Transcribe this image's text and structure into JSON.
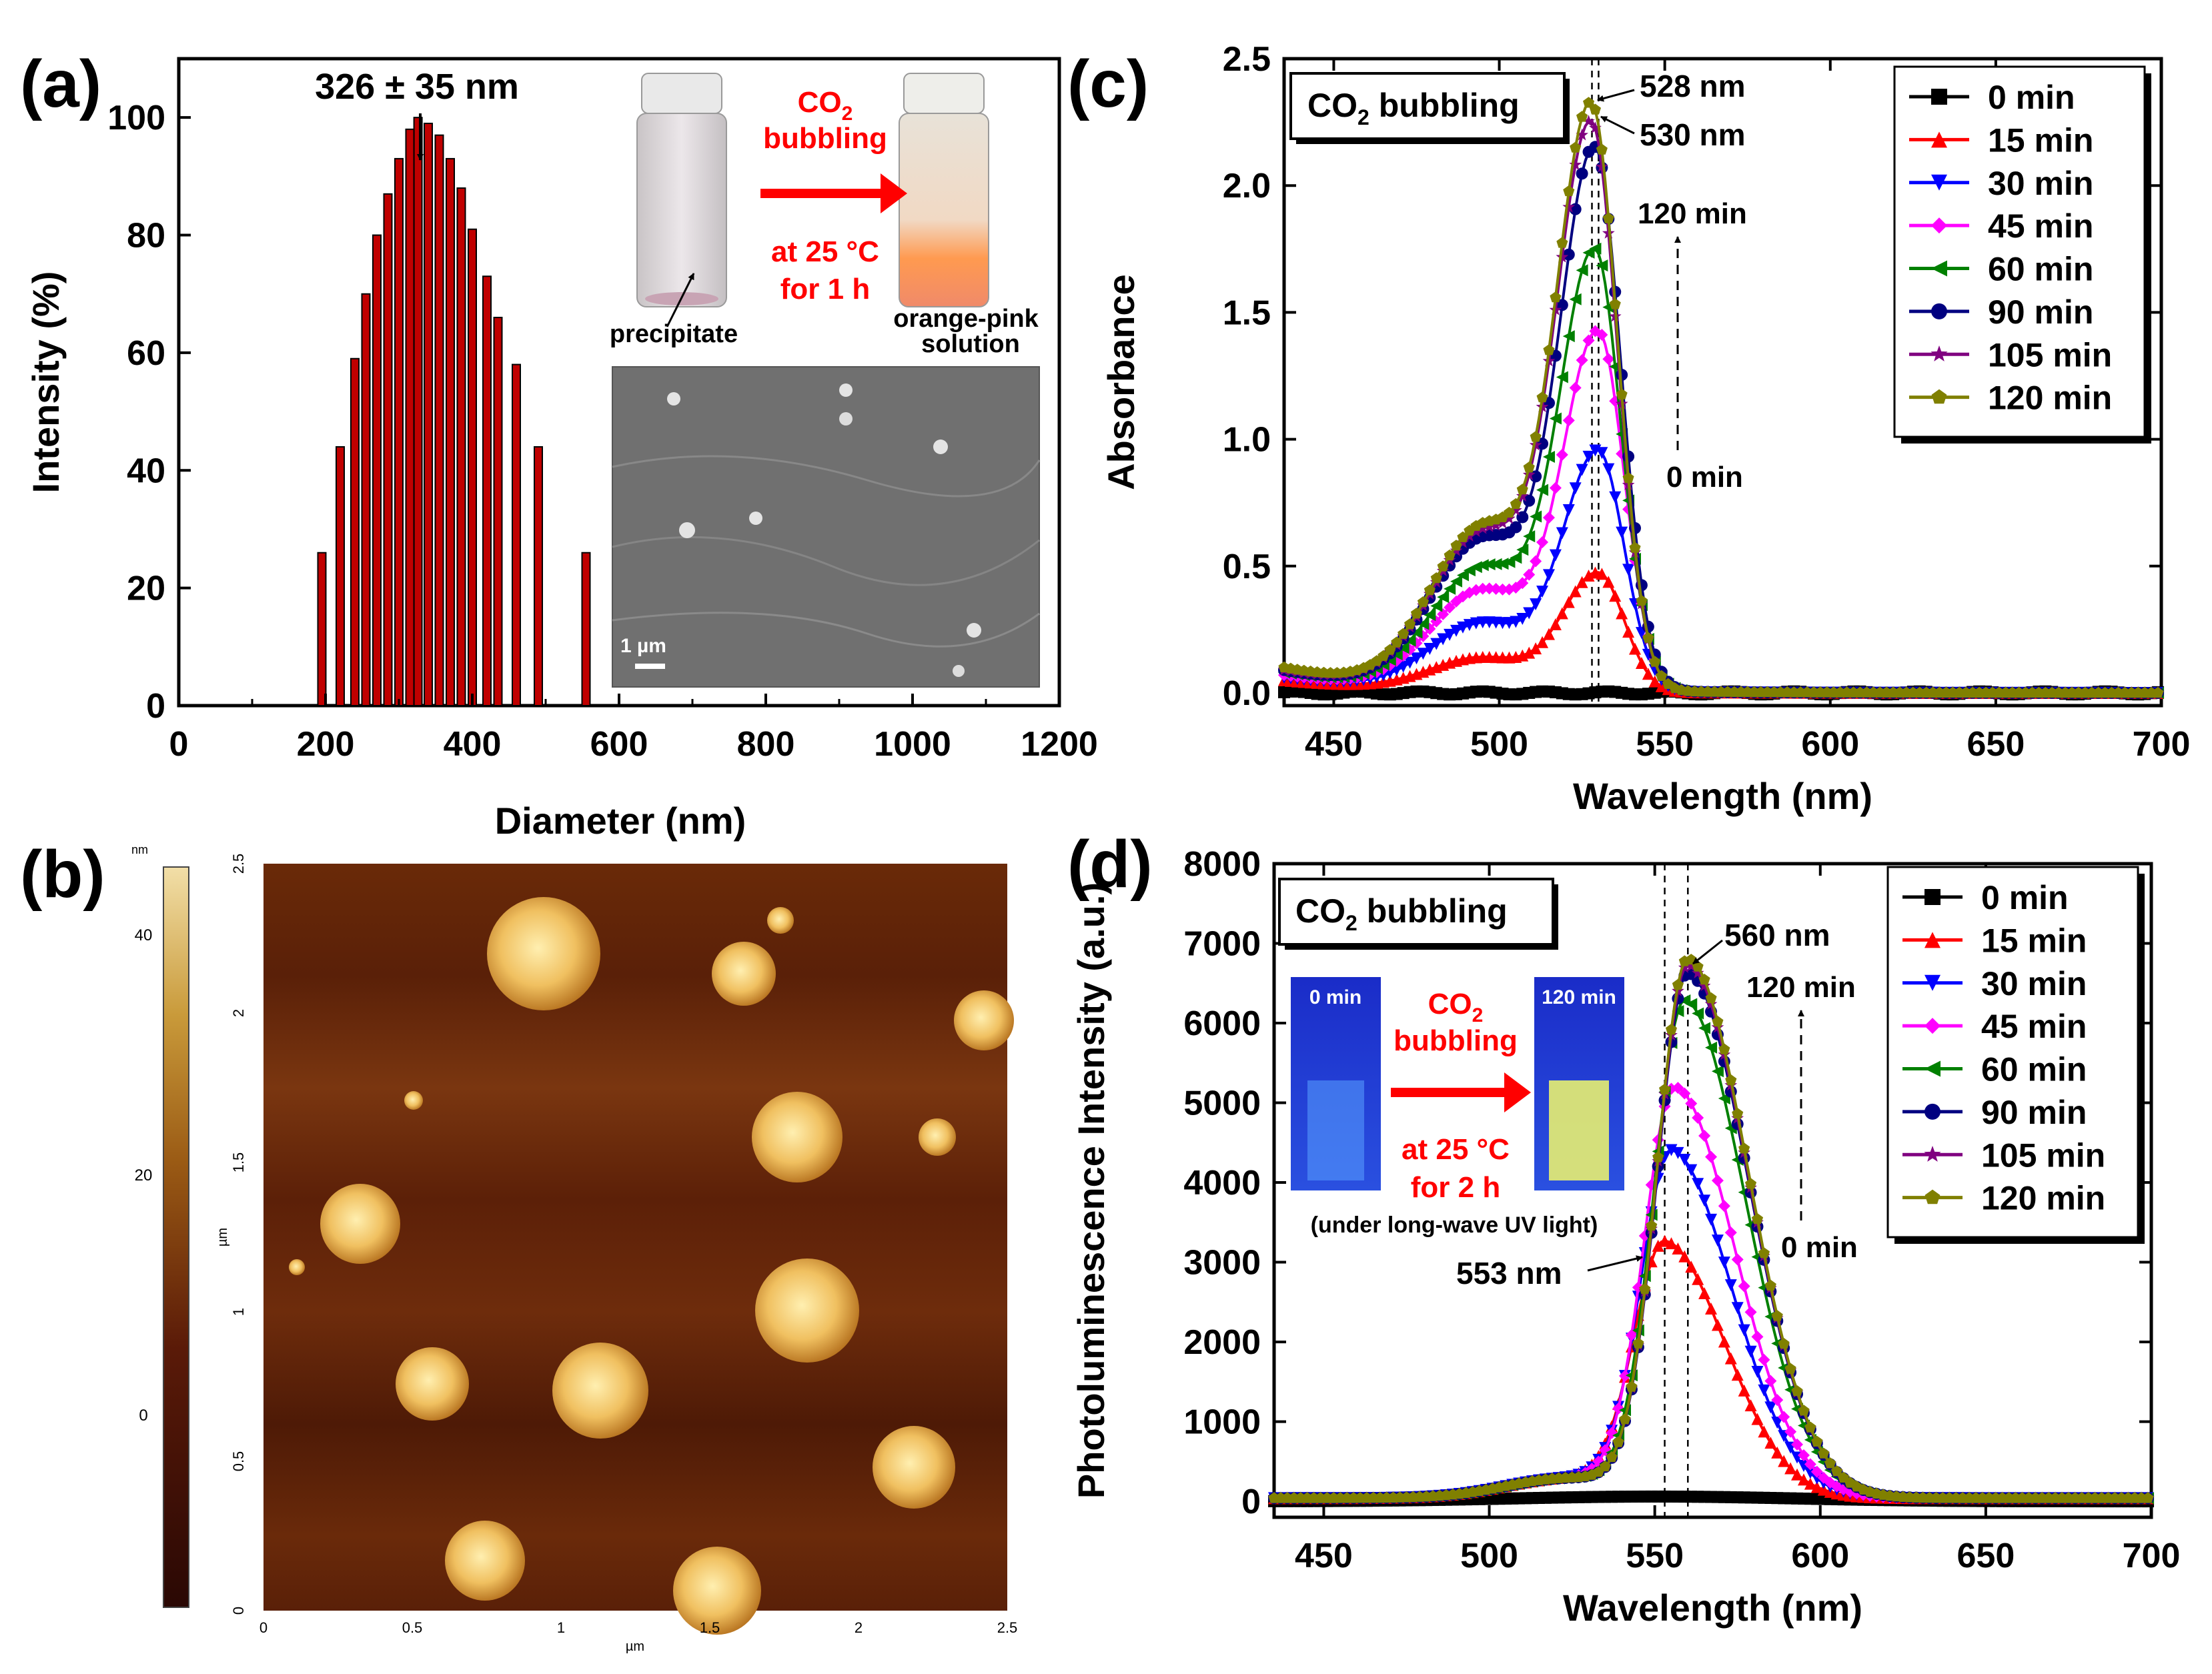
{
  "colors": {
    "red": "#ff0000",
    "blue": "#0000ff",
    "magenta": "#ff00ff",
    "green": "#008000",
    "navy": "#000080",
    "purple": "#800080",
    "olive": "#808000",
    "black": "#000000",
    "bar_fill": "#c00000",
    "afm_dark": "#2a0804",
    "afm_mid": "#8b4513",
    "afm_light": "#e3c078"
  },
  "panel_a": {
    "label": "(a)",
    "peak_label": "326 ± 35 nm",
    "inset": {
      "reagent_top": "CO",
      "reagent_sub": "2",
      "line1": "bubbling",
      "line2": "at 25 °C",
      "line3": "for 1 h",
      "left_caption": "precipitate",
      "right_caption_1": "orange-pink",
      "right_caption_2": "solution",
      "sem_scale": "1 µm"
    },
    "chart_data": {
      "type": "bar",
      "xlabel": "Diameter (nm)",
      "ylabel": "Intensity (%)",
      "xlim": [
        0,
        1200
      ],
      "ylim": [
        0,
        110
      ],
      "xticks": [
        0,
        200,
        400,
        600,
        800,
        1000,
        1200
      ],
      "yticks": [
        0,
        20,
        40,
        60,
        80,
        100
      ],
      "x": [
        195,
        220,
        240,
        255,
        270,
        285,
        300,
        315,
        326,
        340,
        355,
        370,
        385,
        400,
        420,
        435,
        460,
        490,
        555
      ],
      "values": [
        26,
        44,
        59,
        70,
        80,
        87,
        93,
        98,
        100,
        99,
        97,
        93,
        88,
        81,
        73,
        66,
        58,
        44,
        26
      ]
    }
  },
  "panel_b": {
    "label": "(b)",
    "unit_label": "nm",
    "colorbar_ticks": [
      "40",
      "20",
      "0"
    ],
    "axis_unit": "µm",
    "x_ticks": [
      "0",
      "0.5",
      "1",
      "1.5",
      "2",
      "2.5"
    ],
    "y_ticks": [
      "0",
      "0.5",
      "1",
      "1.5",
      "2",
      "2.5"
    ]
  },
  "panel_c": {
    "label": "(c)",
    "box_label": "CO",
    "box_sub": "2",
    "box_suffix": " bubbling",
    "annot_528": "528 nm",
    "annot_530": "530 nm",
    "annot_top": "120 min",
    "annot_bottom": "0 min",
    "chart_data": {
      "type": "line",
      "title": "",
      "xlabel": "Wavelength (nm)",
      "ylabel": "Absorbance",
      "xlim": [
        435,
        700
      ],
      "ylim": [
        -0.05,
        2.5
      ],
      "xticks": [
        450,
        500,
        550,
        600,
        650,
        700
      ],
      "yticks": [
        0.0,
        0.5,
        1.0,
        1.5,
        2.0,
        2.5
      ],
      "ytick_labels": [
        "0.0",
        "0.5",
        "1.0",
        "1.5",
        "2.0",
        "2.5"
      ],
      "legend": "top-right",
      "series": [
        {
          "name": "0 min",
          "peak": 0.0,
          "center": 530,
          "base": 0.01
        },
        {
          "name": "15 min",
          "peak": 0.46,
          "center": 530,
          "base": 0.05
        },
        {
          "name": "30 min",
          "peak": 0.93,
          "center": 530,
          "base": 0.06
        },
        {
          "name": "45 min",
          "peak": 1.39,
          "center": 530,
          "base": 0.07
        },
        {
          "name": "60 min",
          "peak": 1.7,
          "center": 529,
          "base": 0.08
        },
        {
          "name": "90 min",
          "peak": 2.09,
          "center": 529,
          "base": 0.09
        },
        {
          "name": "105 min",
          "peak": 2.18,
          "center": 528,
          "base": 0.09
        },
        {
          "name": "120 min",
          "peak": 2.25,
          "center": 528,
          "base": 0.1
        }
      ]
    }
  },
  "panel_d": {
    "label": "(d)",
    "box_label": "CO",
    "box_sub": "2",
    "box_suffix": " bubbling",
    "annot_560": "560 nm",
    "annot_553": "553 nm",
    "annot_top": "120 min",
    "annot_bottom": "0 min",
    "inset": {
      "left_tag": "0 min",
      "right_tag": "120 min",
      "reagent_top": "CO",
      "reagent_sub": "2",
      "line1": "bubbling",
      "line2": "at 25 °C",
      "line3": "for 2 h",
      "caption": "(under long-wave UV light)"
    },
    "chart_data": {
      "type": "line",
      "xlabel": "Wavelength (nm)",
      "ylabel": "Photoluminescence Intensity (a.u.)",
      "xlim": [
        435,
        700
      ],
      "ylim": [
        -200,
        8000
      ],
      "xticks": [
        450,
        500,
        550,
        600,
        650,
        700
      ],
      "yticks": [
        0,
        1000,
        2000,
        3000,
        4000,
        5000,
        6000,
        7000,
        8000
      ],
      "legend": "top-right",
      "series": [
        {
          "name": "0 min",
          "peak": 0,
          "center": 553
        },
        {
          "name": "15 min",
          "peak": 3100,
          "center": 553
        },
        {
          "name": "30 min",
          "peak": 4250,
          "center": 555
        },
        {
          "name": "45 min",
          "peak": 5050,
          "center": 556
        },
        {
          "name": "60 min",
          "peak": 6150,
          "center": 559
        },
        {
          "name": "90 min",
          "peak": 6500,
          "center": 560
        },
        {
          "name": "105 min",
          "peak": 6600,
          "center": 560
        },
        {
          "name": "120 min",
          "peak": 6680,
          "center": 560
        }
      ]
    }
  }
}
